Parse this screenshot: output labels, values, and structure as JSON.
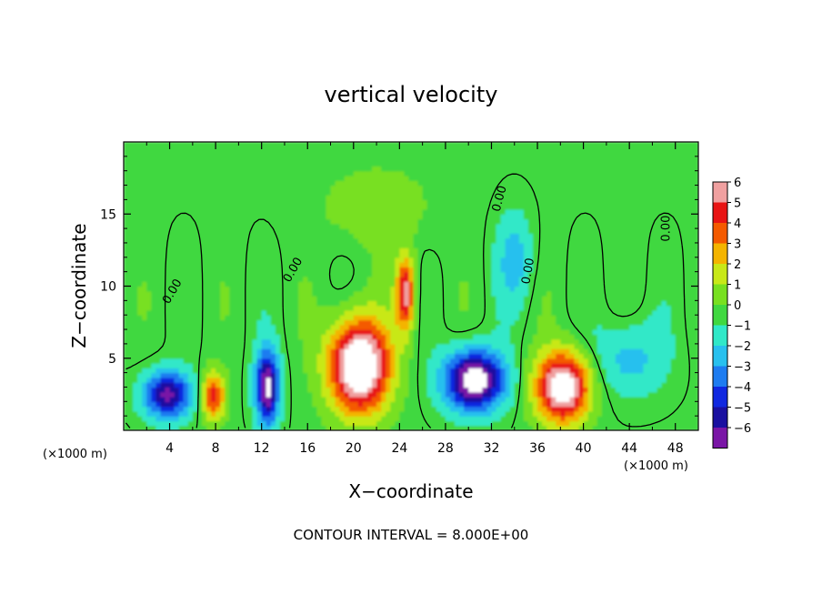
{
  "chart_data": {
    "type": "heatmap",
    "title": "vertical velocity",
    "xlabel": "X−coordinate",
    "ylabel": "Z−coordinate",
    "x_unit_left": "(×1000 m)",
    "x_unit_right": "(×1000 m)",
    "xlim": [
      0,
      50
    ],
    "ylim": [
      0,
      20
    ],
    "x_ticks": [
      4,
      8,
      12,
      16,
      20,
      24,
      28,
      32,
      36,
      40,
      44,
      48
    ],
    "y_ticks": [
      5,
      10,
      15
    ],
    "x_tick_labels": [
      "4",
      "8",
      "12",
      "16",
      "20",
      "24",
      "28",
      "32",
      "36",
      "40",
      "44",
      "48"
    ],
    "y_tick_labels": [
      "5",
      "10",
      "15"
    ],
    "colorbar": {
      "min": -6,
      "max": 6,
      "tick_values": [
        6,
        5,
        4,
        3,
        2,
        1,
        0,
        -1,
        -2,
        -3,
        -4,
        -5,
        -6
      ],
      "tick_labels": [
        "6",
        "5",
        "4",
        "3",
        "2",
        "1",
        "0",
        "−1",
        "−2",
        "−3",
        "−4",
        "−5",
        "−6"
      ]
    },
    "contour_labels": [
      "0.00",
      "0.00",
      "0.00",
      "0.00",
      "0.00"
    ],
    "footer": "CONTOUR INTERVAL = 8.000E+00",
    "features": [
      {
        "kind": "updraft",
        "x": 3.8,
        "z": 2.5,
        "amp": -6,
        "sx": 2.0,
        "sz": 1.6
      },
      {
        "kind": "updraft",
        "x": 7.8,
        "z": 2.4,
        "amp": 5,
        "sx": 1.0,
        "sz": 1.6
      },
      {
        "kind": "updraft",
        "x": 12.5,
        "z": 3.0,
        "amp": -7,
        "sx": 1.0,
        "sz": 2.5
      },
      {
        "kind": "updraft",
        "x": 20.5,
        "z": 4.5,
        "amp": 9,
        "sx": 2.6,
        "sz": 3.2
      },
      {
        "kind": "updraft",
        "x": 24.5,
        "z": 9.5,
        "amp": 6,
        "sx": 0.8,
        "sz": 2.5
      },
      {
        "kind": "updraft",
        "x": 30.5,
        "z": 3.5,
        "amp": -8,
        "sx": 2.5,
        "sz": 2.0
      },
      {
        "kind": "updraft",
        "x": 38.2,
        "z": 3.0,
        "amp": 8,
        "sx": 2.3,
        "sz": 2.4
      },
      {
        "kind": "updraft",
        "x": 34.0,
        "z": 12.0,
        "amp": -2,
        "sx": 1.5,
        "sz": 3.0
      },
      {
        "kind": "updraft",
        "x": 44.0,
        "z": 5.0,
        "amp": -2,
        "sx": 3.0,
        "sz": 2.5
      },
      {
        "kind": "updraft",
        "x": 22.0,
        "z": 15.5,
        "amp": 1,
        "sx": 5.0,
        "sz": 3.0
      }
    ]
  }
}
